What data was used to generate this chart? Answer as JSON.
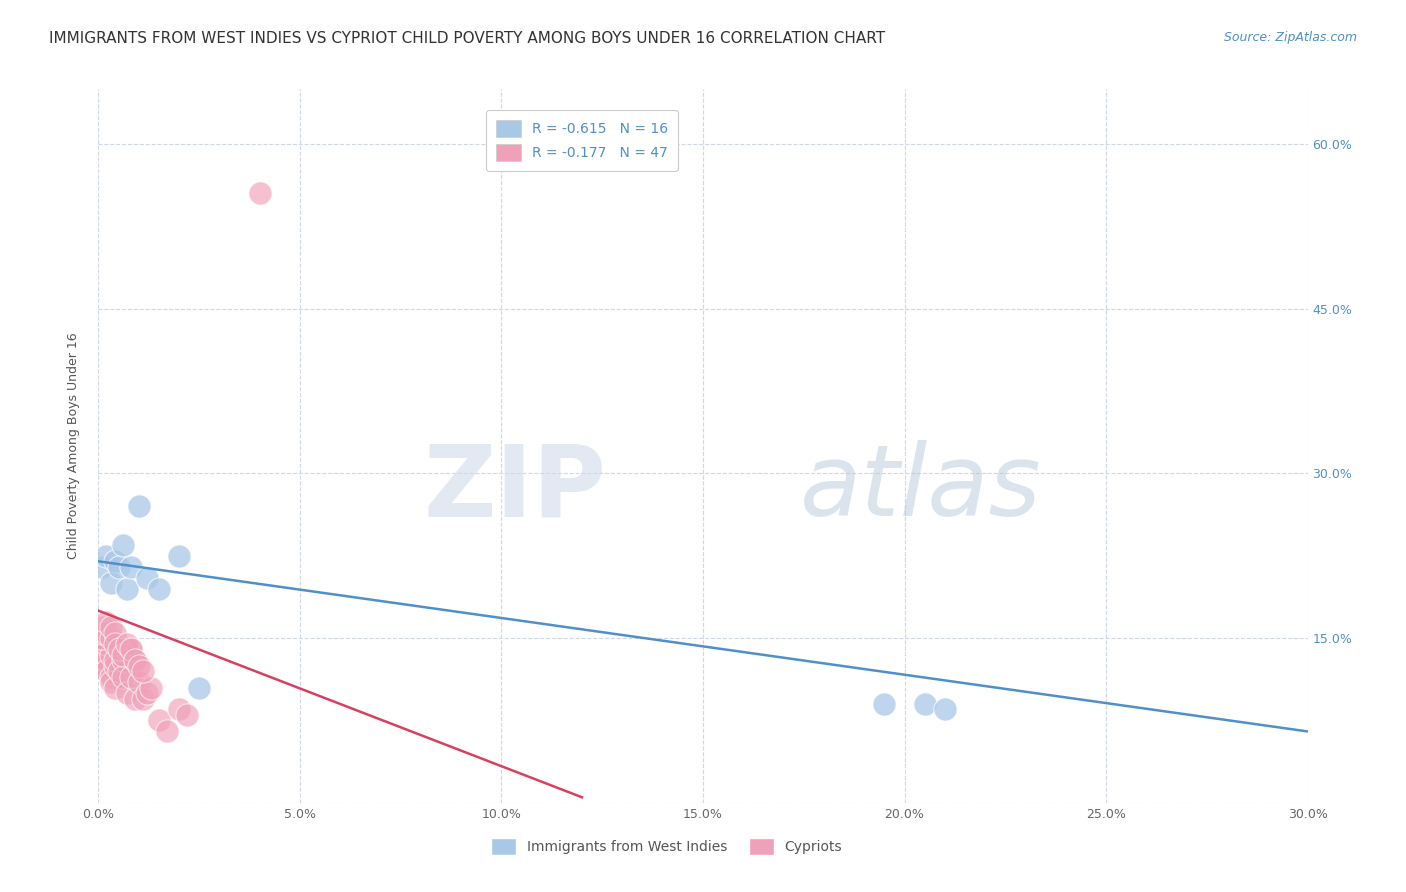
{
  "title": "IMMIGRANTS FROM WEST INDIES VS CYPRIOT CHILD POVERTY AMONG BOYS UNDER 16 CORRELATION CHART",
  "source": "Source: ZipAtlas.com",
  "xlim": [
    0.0,
    0.3
  ],
  "ylim": [
    0.0,
    0.65
  ],
  "ytick_vals": [
    0.0,
    0.15,
    0.3,
    0.45,
    0.6
  ],
  "xtick_vals": [
    0.0,
    0.05,
    0.1,
    0.15,
    0.2,
    0.25,
    0.3
  ],
  "ylabel": "Child Poverty Among Boys Under 16",
  "legend_label_1": "Immigrants from West Indies",
  "legend_label_2": "Cypriots",
  "R1": -0.615,
  "N1": 16,
  "R2": -0.177,
  "N2": 47,
  "color_blue": "#a8c8e8",
  "color_pink": "#f0a0b8",
  "line_color_blue": "#5090c8",
  "line_color_pink": "#d84060",
  "watermark_zip": "ZIP",
  "watermark_atlas": "atlas",
  "west_indies_x": [
    0.001,
    0.002,
    0.003,
    0.004,
    0.005,
    0.006,
    0.007,
    0.008,
    0.01,
    0.012,
    0.015,
    0.02,
    0.025,
    0.195,
    0.205,
    0.21
  ],
  "west_indies_y": [
    0.215,
    0.225,
    0.2,
    0.22,
    0.215,
    0.235,
    0.195,
    0.215,
    0.27,
    0.205,
    0.195,
    0.225,
    0.105,
    0.09,
    0.09,
    0.085
  ],
  "cypriot_x": [
    0.001,
    0.001,
    0.001,
    0.002,
    0.002,
    0.002,
    0.003,
    0.003,
    0.003,
    0.004,
    0.004,
    0.004,
    0.005,
    0.005,
    0.006,
    0.006,
    0.007,
    0.007,
    0.008,
    0.008,
    0.009,
    0.009,
    0.01,
    0.011,
    0.012,
    0.013,
    0.015,
    0.017,
    0.02,
    0.022,
    0.001,
    0.001,
    0.001,
    0.002,
    0.002,
    0.003,
    0.003,
    0.004,
    0.004,
    0.005,
    0.006,
    0.007,
    0.008,
    0.009,
    0.01,
    0.011,
    0.04
  ],
  "cypriot_y": [
    0.135,
    0.14,
    0.125,
    0.13,
    0.12,
    0.145,
    0.135,
    0.115,
    0.11,
    0.125,
    0.13,
    0.105,
    0.145,
    0.12,
    0.13,
    0.115,
    0.14,
    0.1,
    0.115,
    0.14,
    0.095,
    0.13,
    0.11,
    0.095,
    0.1,
    0.105,
    0.075,
    0.065,
    0.085,
    0.08,
    0.15,
    0.155,
    0.16,
    0.155,
    0.165,
    0.15,
    0.16,
    0.155,
    0.145,
    0.14,
    0.135,
    0.145,
    0.14,
    0.13,
    0.125,
    0.12,
    0.555
  ],
  "blue_line_x0": 0.0,
  "blue_line_y0": 0.22,
  "blue_line_x1": 0.3,
  "blue_line_y1": 0.065,
  "pink_line_x0": 0.0,
  "pink_line_y0": 0.175,
  "pink_line_x1": 0.12,
  "pink_line_y1": 0.005,
  "background_color": "#ffffff",
  "grid_color": "#d0d8e8",
  "title_fontsize": 11,
  "axis_label_fontsize": 9,
  "tick_fontsize": 9,
  "legend_fontsize": 10,
  "source_fontsize": 9
}
